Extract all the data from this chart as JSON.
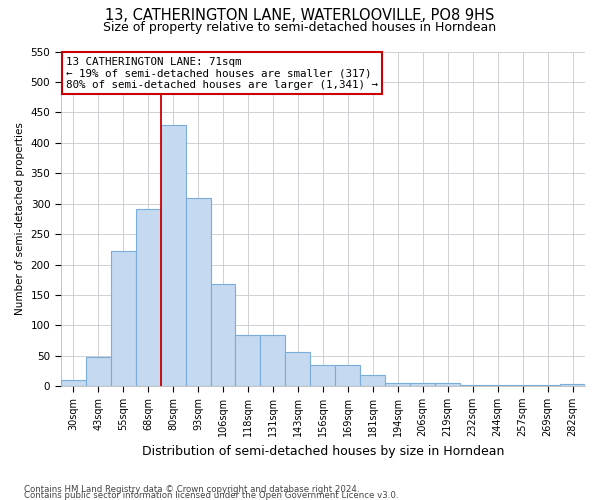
{
  "title": "13, CATHERINGTON LANE, WATERLOOVILLE, PO8 9HS",
  "subtitle": "Size of property relative to semi-detached houses in Horndean",
  "xlabel": "Distribution of semi-detached houses by size in Horndean",
  "ylabel": "Number of semi-detached properties",
  "categories": [
    "30sqm",
    "43sqm",
    "55sqm",
    "68sqm",
    "80sqm",
    "93sqm",
    "106sqm",
    "118sqm",
    "131sqm",
    "143sqm",
    "156sqm",
    "169sqm",
    "181sqm",
    "194sqm",
    "206sqm",
    "219sqm",
    "232sqm",
    "244sqm",
    "257sqm",
    "269sqm",
    "282sqm"
  ],
  "values": [
    10,
    48,
    222,
    291,
    430,
    310,
    168,
    85,
    85,
    57,
    35,
    35,
    18,
    5,
    5,
    5,
    2,
    2,
    2,
    2,
    3
  ],
  "bar_color": "#c5d9f0",
  "bar_edge_color": "#7aadda",
  "marker_line_color": "#cc0000",
  "annotation_box_bg": "#ffffff",
  "annotation_box_edge": "#cc0000",
  "marker_label": "13 CATHERINGTON LANE: 71sqm",
  "pct_smaller": 19,
  "count_smaller": 317,
  "pct_larger": 80,
  "count_larger": 1341,
  "ylim": [
    0,
    550
  ],
  "yticks": [
    0,
    50,
    100,
    150,
    200,
    250,
    300,
    350,
    400,
    450,
    500,
    550
  ],
  "footnote1": "Contains HM Land Registry data © Crown copyright and database right 2024.",
  "footnote2": "Contains public sector information licensed under the Open Government Licence v3.0.",
  "bg_color": "#ffffff",
  "grid_color": "#c8c8d0",
  "title_fontsize": 10.5,
  "subtitle_fontsize": 9,
  "xlabel_fontsize": 9,
  "ylabel_fontsize": 7.5
}
